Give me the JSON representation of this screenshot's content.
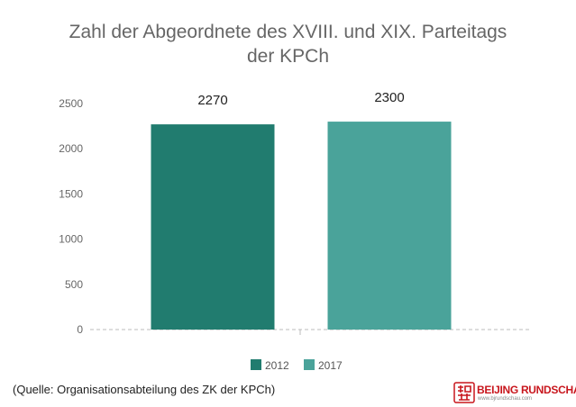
{
  "chart_data": {
    "type": "bar",
    "title_line1": "Zahl der Abgeordnete des XVIII. und XIX. Parteitags",
    "title_line2": "der KPCh",
    "categories": [
      "2012",
      "2017"
    ],
    "values": [
      2270,
      2300
    ],
    "data_labels": [
      "2270",
      "2300"
    ],
    "ylim": [
      0,
      2500
    ],
    "yticks": [
      0,
      500,
      1000,
      1500,
      2000,
      2500
    ],
    "grid": false,
    "legend_position": "bottom-center",
    "colors": [
      "#217c6f",
      "#4aa39a"
    ],
    "axis_color": "#bbbbbb"
  },
  "source": "(Quelle: Organisationsabteilung des ZK der KPCh)",
  "logo": {
    "name": "BEIJING RUNDSCHAU",
    "url": "www.bjrundschau.com",
    "color": "#c8161d"
  }
}
